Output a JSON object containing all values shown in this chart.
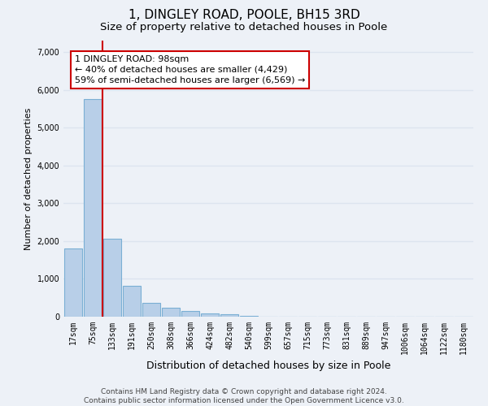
{
  "title": "1, DINGLEY ROAD, POOLE, BH15 3RD",
  "subtitle": "Size of property relative to detached houses in Poole",
  "xlabel": "Distribution of detached houses by size in Poole",
  "ylabel": "Number of detached properties",
  "categories": [
    "17sqm",
    "75sqm",
    "133sqm",
    "191sqm",
    "250sqm",
    "308sqm",
    "366sqm",
    "424sqm",
    "482sqm",
    "540sqm",
    "599sqm",
    "657sqm",
    "715sqm",
    "773sqm",
    "831sqm",
    "889sqm",
    "947sqm",
    "1006sqm",
    "1064sqm",
    "1122sqm",
    "1180sqm"
  ],
  "values": [
    1800,
    5750,
    2060,
    810,
    370,
    240,
    140,
    95,
    75,
    30,
    10,
    5,
    0,
    0,
    0,
    0,
    0,
    0,
    0,
    0,
    0
  ],
  "bar_color": "#b8cfe8",
  "bar_edge_color": "#7aafd4",
  "property_line_x": 1.5,
  "property_line_color": "#cc0000",
  "annotation_text": "1 DINGLEY ROAD: 98sqm\n← 40% of detached houses are smaller (4,429)\n59% of semi-detached houses are larger (6,569) →",
  "annotation_box_facecolor": "#ffffff",
  "annotation_box_edgecolor": "#cc0000",
  "ylim_max": 7300,
  "yticks": [
    0,
    1000,
    2000,
    3000,
    4000,
    5000,
    6000,
    7000
  ],
  "bg_color": "#edf1f7",
  "grid_color": "#dde4ef",
  "footer_line1": "Contains HM Land Registry data © Crown copyright and database right 2024.",
  "footer_line2": "Contains public sector information licensed under the Open Government Licence v3.0.",
  "title_fontsize": 11,
  "subtitle_fontsize": 9.5,
  "xlabel_fontsize": 9,
  "ylabel_fontsize": 8,
  "annot_fontsize": 8,
  "tick_fontsize": 7,
  "footer_fontsize": 6.5
}
